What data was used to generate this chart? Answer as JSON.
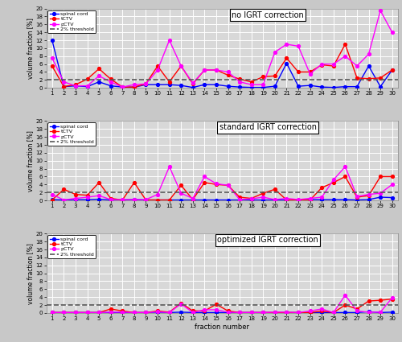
{
  "fractions": [
    1,
    2,
    3,
    4,
    5,
    6,
    7,
    8,
    9,
    10,
    11,
    12,
    13,
    14,
    15,
    16,
    17,
    18,
    19,
    20,
    21,
    22,
    23,
    24,
    25,
    26,
    27,
    28,
    29,
    30
  ],
  "panel1_title": "no IGRT correction",
  "panel2_title": "standard IGRT correction",
  "panel3_title": "optimized IGRT correction",
  "ylabel": "volume fraction [%]",
  "xlabel": "fraction number",
  "threshold": 2.0,
  "ylim": [
    0,
    20
  ],
  "yticks": [
    0,
    2,
    4,
    6,
    8,
    10,
    12,
    14,
    16,
    18,
    20
  ],
  "p1_spinal": [
    12.0,
    0.3,
    0.5,
    0.3,
    1.5,
    0.5,
    0.2,
    0.15,
    0.8,
    0.8,
    0.8,
    0.6,
    0.1,
    0.8,
    0.8,
    0.4,
    0.2,
    0.1,
    0.1,
    0.4,
    6.2,
    0.4,
    0.6,
    0.2,
    0.1,
    0.3,
    0.3,
    5.5,
    0.3,
    4.5
  ],
  "p1_tctv": [
    5.5,
    0.3,
    0.8,
    2.2,
    4.8,
    2.2,
    0.2,
    0.2,
    1.0,
    5.5,
    1.5,
    5.5,
    1.0,
    4.5,
    4.5,
    3.2,
    2.2,
    1.5,
    2.8,
    3.0,
    7.5,
    4.0,
    4.0,
    5.8,
    5.5,
    11.0,
    2.5,
    2.3,
    2.5,
    4.5
  ],
  "p1_pctv": [
    7.5,
    1.5,
    0.5,
    0.5,
    3.0,
    1.5,
    0.2,
    0.8,
    1.0,
    4.5,
    12.0,
    5.5,
    1.2,
    4.5,
    4.5,
    4.0,
    1.5,
    0.8,
    0.8,
    9.0,
    11.0,
    10.5,
    3.5,
    6.0,
    6.0,
    8.0,
    5.5,
    8.5,
    19.5,
    14.0
  ],
  "p2_spinal": [
    0.2,
    0.1,
    0.2,
    0.2,
    0.3,
    0.1,
    0.1,
    0.2,
    0.1,
    0.1,
    0.1,
    0.1,
    0.1,
    0.1,
    0.1,
    0.1,
    0.1,
    0.1,
    0.1,
    0.1,
    0.1,
    0.1,
    0.2,
    0.2,
    0.2,
    0.2,
    0.1,
    0.2,
    0.8,
    0.7
  ],
  "p2_tctv": [
    0.1,
    2.8,
    1.5,
    1.3,
    4.5,
    0.5,
    0.1,
    4.5,
    0.1,
    0.1,
    0.1,
    3.8,
    0.2,
    4.5,
    4.0,
    3.8,
    0.8,
    0.5,
    1.8,
    2.8,
    0.1,
    0.1,
    0.1,
    3.2,
    4.5,
    6.0,
    0.8,
    1.2,
    6.0,
    6.0
  ],
  "p2_pctv": [
    1.5,
    0.1,
    0.5,
    0.8,
    1.2,
    0.2,
    0.2,
    0.2,
    0.2,
    1.5,
    8.5,
    1.8,
    0.5,
    6.0,
    4.2,
    3.8,
    0.2,
    0.4,
    0.8,
    0.2,
    0.5,
    0.2,
    0.5,
    0.8,
    5.2,
    8.5,
    1.0,
    1.5,
    1.8,
    4.0
  ],
  "p3_spinal": [
    0.1,
    0.1,
    0.1,
    0.1,
    0.1,
    0.1,
    0.1,
    0.1,
    0.1,
    0.2,
    0.1,
    0.2,
    0.1,
    0.1,
    0.1,
    0.1,
    0.1,
    0.1,
    0.1,
    0.1,
    0.1,
    0.1,
    0.1,
    0.1,
    0.1,
    0.1,
    0.1,
    0.3,
    0.1,
    0.2
  ],
  "p3_tctv": [
    0.1,
    0.1,
    0.1,
    0.1,
    0.1,
    1.0,
    0.5,
    0.1,
    0.1,
    0.5,
    0.2,
    2.5,
    0.5,
    0.5,
    2.2,
    0.5,
    0.1,
    0.1,
    0.1,
    0.1,
    0.1,
    0.1,
    0.1,
    0.5,
    0.1,
    2.0,
    1.0,
    3.0,
    3.2,
    3.5
  ],
  "p3_pctv": [
    0.1,
    0.1,
    0.1,
    0.1,
    0.1,
    0.2,
    0.2,
    0.1,
    0.1,
    0.3,
    0.1,
    2.3,
    0.1,
    0.8,
    0.8,
    0.2,
    0.1,
    0.1,
    0.1,
    0.2,
    0.2,
    0.1,
    0.5,
    1.0,
    0.1,
    4.5,
    0.5,
    0.2,
    0.2,
    3.8
  ],
  "color_spinal": "#0000FF",
  "color_tctv": "#FF0000",
  "color_pctv": "#FF00FF",
  "color_threshold": "#555555",
  "legend_labels": [
    "spinal cord",
    "tCTV",
    "pCTV",
    "2% threshold"
  ],
  "fig_bg": "#C8C8C8",
  "panel_bg": "#D8D8D8",
  "grid_color": "#FFFFFF"
}
